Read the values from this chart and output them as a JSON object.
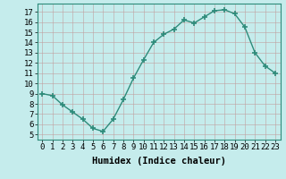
{
  "x": [
    0,
    1,
    2,
    3,
    4,
    5,
    6,
    7,
    8,
    9,
    10,
    11,
    12,
    13,
    14,
    15,
    16,
    17,
    18,
    19,
    20,
    21,
    22,
    23
  ],
  "y": [
    9.0,
    8.8,
    7.9,
    7.2,
    6.5,
    5.6,
    5.3,
    6.5,
    8.4,
    10.5,
    12.3,
    14.0,
    14.8,
    15.3,
    16.2,
    15.9,
    16.5,
    17.1,
    17.2,
    16.8,
    15.5,
    13.0,
    11.7,
    11.0
  ],
  "line_color": "#2d8b7a",
  "marker_color": "#2d8b7a",
  "bg_color": "#c5ecec",
  "grid_color": "#b0d8d8",
  "xlabel": "Humidex (Indice chaleur)",
  "ylabel_ticks": [
    5,
    6,
    7,
    8,
    9,
    10,
    11,
    12,
    13,
    14,
    15,
    16,
    17
  ],
  "xlim": [
    -0.5,
    23.5
  ],
  "ylim": [
    4.5,
    17.8
  ],
  "xlabel_fontsize": 7.5,
  "tick_fontsize": 6.5,
  "xtick_labels": [
    "0",
    "1",
    "2",
    "3",
    "4",
    "5",
    "6",
    "7",
    "8",
    "9",
    "10",
    "11",
    "12",
    "13",
    "14",
    "15",
    "16",
    "17",
    "18",
    "19",
    "20",
    "21",
    "22",
    "23"
  ],
  "linewidth": 1.0,
  "markersize": 4,
  "marker": "+"
}
